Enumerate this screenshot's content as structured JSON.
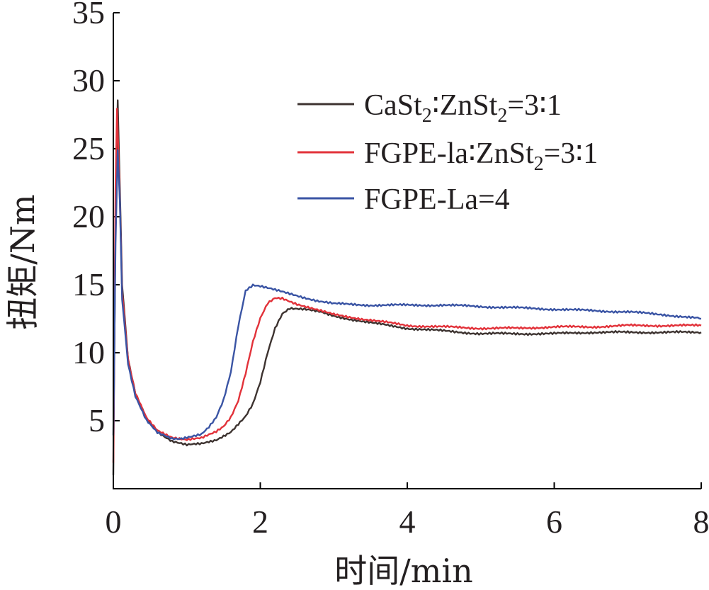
{
  "chart_data": {
    "type": "line",
    "xlabel": "时间/min",
    "ylabel": "扭矩/Nm",
    "xlim": [
      0,
      8
    ],
    "ylim": [
      0,
      35
    ],
    "xticks": [
      "0",
      "2",
      "4",
      "6",
      "8"
    ],
    "yticks": [
      "5",
      "10",
      "15",
      "20",
      "25",
      "30",
      "35"
    ],
    "grid": false,
    "legend_position": "top-right",
    "series": [
      {
        "name": "CaSt2:ZnSt2=3:1",
        "legend_parts": [
          {
            "text": "CaSt"
          },
          {
            "text": "2",
            "sub": true
          },
          {
            "text": "∶ZnSt"
          },
          {
            "text": "2",
            "sub": true
          },
          {
            "text": "=3∶1"
          }
        ],
        "color": "#3d3330",
        "points": [
          [
            0,
            1.0
          ],
          [
            0.03,
            20.0
          ],
          [
            0.06,
            28.5
          ],
          [
            0.08,
            24.0
          ],
          [
            0.12,
            15.0
          ],
          [
            0.2,
            9.5
          ],
          [
            0.3,
            7.0
          ],
          [
            0.45,
            5.2
          ],
          [
            0.6,
            4.2
          ],
          [
            0.8,
            3.5
          ],
          [
            1.0,
            3.2
          ],
          [
            1.2,
            3.3
          ],
          [
            1.4,
            3.6
          ],
          [
            1.6,
            4.2
          ],
          [
            1.8,
            5.3
          ],
          [
            1.9,
            6.2
          ],
          [
            2.0,
            7.8
          ],
          [
            2.1,
            10.0
          ],
          [
            2.2,
            11.8
          ],
          [
            2.3,
            12.9
          ],
          [
            2.4,
            13.3
          ],
          [
            2.6,
            13.2
          ],
          [
            2.8,
            13.0
          ],
          [
            3.0,
            12.7
          ],
          [
            3.5,
            12.2
          ],
          [
            4.0,
            11.8
          ],
          [
            4.5,
            11.6
          ],
          [
            5.0,
            11.4
          ],
          [
            5.5,
            11.4
          ],
          [
            6.0,
            11.4
          ],
          [
            6.5,
            11.5
          ],
          [
            7.0,
            11.5
          ],
          [
            7.5,
            11.5
          ],
          [
            8.0,
            11.5
          ]
        ]
      },
      {
        "name": "FGPE-la:ZnSt2=3:1",
        "legend_parts": [
          {
            "text": "FGPE-la∶ZnSt"
          },
          {
            "text": "2",
            "sub": true
          },
          {
            "text": "=3∶1"
          }
        ],
        "color": "#e2323a",
        "points": [
          [
            0,
            2.0
          ],
          [
            0.03,
            22.0
          ],
          [
            0.05,
            28.0
          ],
          [
            0.08,
            23.0
          ],
          [
            0.12,
            14.5
          ],
          [
            0.2,
            9.5
          ],
          [
            0.3,
            7.0
          ],
          [
            0.45,
            5.2
          ],
          [
            0.6,
            4.3
          ],
          [
            0.8,
            3.8
          ],
          [
            1.0,
            3.6
          ],
          [
            1.2,
            3.7
          ],
          [
            1.4,
            4.2
          ],
          [
            1.5,
            4.6
          ],
          [
            1.6,
            5.3
          ],
          [
            1.7,
            6.5
          ],
          [
            1.8,
            8.5
          ],
          [
            1.9,
            10.8
          ],
          [
            2.0,
            12.5
          ],
          [
            2.1,
            13.6
          ],
          [
            2.2,
            14.0
          ],
          [
            2.3,
            14.0
          ],
          [
            2.5,
            13.6
          ],
          [
            2.8,
            13.1
          ],
          [
            3.0,
            12.8
          ],
          [
            3.5,
            12.4
          ],
          [
            4.0,
            12.0
          ],
          [
            4.5,
            11.9
          ],
          [
            5.0,
            11.8
          ],
          [
            5.5,
            11.8
          ],
          [
            6.0,
            11.9
          ],
          [
            6.5,
            11.9
          ],
          [
            7.0,
            12.0
          ],
          [
            7.5,
            12.0
          ],
          [
            8.0,
            12.0
          ]
        ]
      },
      {
        "name": "FGPE-La=4",
        "legend_parts": [
          {
            "text": "FGPE-La=4"
          }
        ],
        "color": "#3a54a4",
        "points": [
          [
            0,
            4.0
          ],
          [
            0.03,
            18.0
          ],
          [
            0.06,
            25.0
          ],
          [
            0.09,
            21.0
          ],
          [
            0.12,
            14.0
          ],
          [
            0.2,
            9.2
          ],
          [
            0.3,
            6.8
          ],
          [
            0.45,
            5.0
          ],
          [
            0.6,
            4.1
          ],
          [
            0.8,
            3.7
          ],
          [
            0.9,
            3.7
          ],
          [
            1.0,
            3.8
          ],
          [
            1.2,
            4.0
          ],
          [
            1.3,
            4.5
          ],
          [
            1.4,
            5.2
          ],
          [
            1.5,
            6.5
          ],
          [
            1.6,
            8.6
          ],
          [
            1.7,
            12.0
          ],
          [
            1.8,
            14.6
          ],
          [
            1.9,
            15.0
          ],
          [
            2.0,
            14.9
          ],
          [
            2.2,
            14.6
          ],
          [
            2.5,
            14.2
          ],
          [
            2.8,
            13.8
          ],
          [
            3.0,
            13.6
          ],
          [
            3.5,
            13.5
          ],
          [
            4.0,
            13.5
          ],
          [
            4.5,
            13.5
          ],
          [
            5.0,
            13.4
          ],
          [
            5.5,
            13.3
          ],
          [
            6.0,
            13.2
          ],
          [
            6.5,
            13.1
          ],
          [
            7.0,
            13.0
          ],
          [
            7.5,
            12.8
          ],
          [
            8.0,
            12.5
          ]
        ]
      }
    ]
  }
}
